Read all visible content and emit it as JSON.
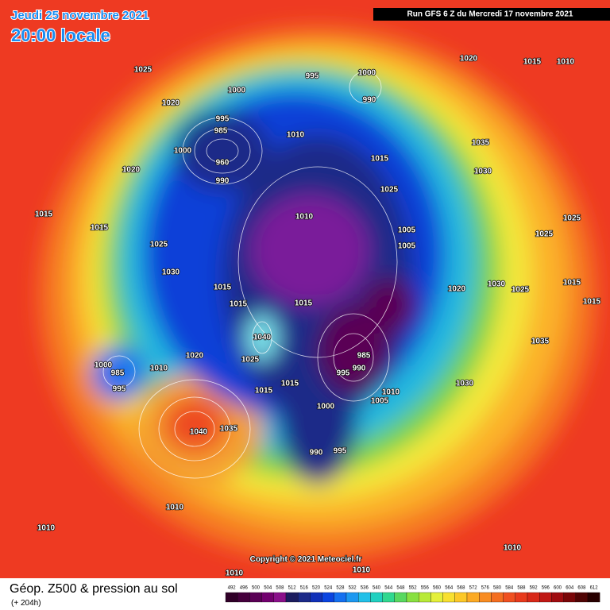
{
  "header": {
    "date": "Jeudi 25 novembre 2021",
    "time": "20:00 locale",
    "run": "Run GFS 6 Z du Mercredi 17 novembre 2021"
  },
  "map": {
    "copyright": "Copyright © 2021 Meteociel.fr",
    "isobar_labels": [
      1025,
      1020,
      1000,
      995,
      985,
      1000,
      960,
      990,
      1020,
      1015,
      1015,
      1025,
      1030,
      1015,
      1015,
      1040,
      1025,
      1020,
      1000,
      985,
      995,
      1010,
      1040,
      1035,
      1015,
      1015,
      1000,
      990,
      995,
      995,
      985,
      990,
      1005,
      1010,
      1030,
      1020,
      1030,
      1025,
      1025,
      1025,
      1005,
      1005,
      1025,
      1015,
      1010,
      1015,
      1010,
      995,
      1000,
      990,
      1020,
      1015,
      1010,
      1035,
      1030,
      1015,
      1015,
      1035,
      1010,
      1010,
      1010,
      1010,
      1010
    ]
  },
  "footer": {
    "title": "Géop. Z500 & pression au sol",
    "lead": "(+ 204h)"
  },
  "scale": {
    "values": [
      492,
      496,
      500,
      504,
      508,
      512,
      516,
      520,
      524,
      528,
      532,
      536,
      540,
      544,
      548,
      552,
      556,
      560,
      564,
      568,
      572,
      576,
      580,
      584,
      588,
      592,
      596,
      600,
      604,
      608,
      612
    ],
    "colors": [
      "#300028",
      "#45003c",
      "#5a0055",
      "#72006e",
      "#8a108a",
      "#1c1c5e",
      "#1c2a88",
      "#1030b8",
      "#0a44e0",
      "#1470f0",
      "#1c98f0",
      "#22c0e8",
      "#20d0c0",
      "#30d890",
      "#58d860",
      "#88e040",
      "#b8ea38",
      "#e4f03a",
      "#f8e030",
      "#fcc828",
      "#fcaa24",
      "#f88c22",
      "#f46e20",
      "#f05020",
      "#e83a1c",
      "#d82818",
      "#c01814",
      "#a00c10",
      "#7a0608",
      "#500404",
      "#280000"
    ]
  }
}
